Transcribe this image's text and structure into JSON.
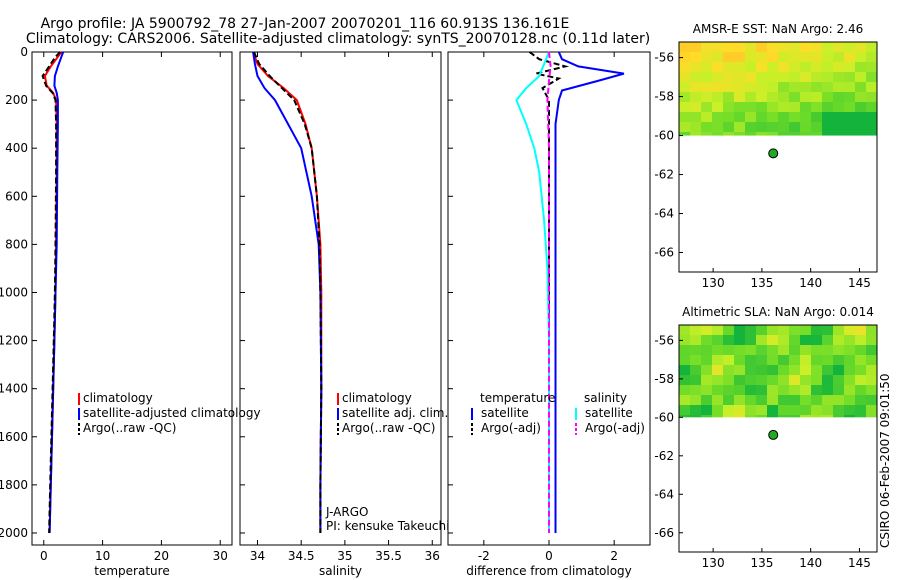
{
  "header": {
    "title_line1": "Argo profile: JA 5900792_78 27-Jan-2007 20070201_116 60.913S 136.161E",
    "title_line2": "Climatology: CARS2006. Satellite-adjusted climatology: synTS_20070128.nc (0.11d later)"
  },
  "colors": {
    "climatology": "#ff0000",
    "satellite": "#0000ff",
    "argo": "#000000",
    "salinity_satellite": "#00ffff",
    "salinity_argo": "#ff00ff",
    "float_marker": "#22aa22"
  },
  "chart_data": [
    {
      "type": "line",
      "title": "",
      "xlabel": "temperature",
      "ylabel": "",
      "xlim": [
        -2,
        32
      ],
      "ylim": [
        2050,
        0
      ],
      "xticks": [
        "0",
        "10",
        "20",
        "30"
      ],
      "xtick_values": [
        0,
        10,
        20,
        30
      ],
      "yticks": [
        "0",
        "200",
        "400",
        "600",
        "800",
        "1000",
        "1200",
        "1400",
        "1600",
        "1800",
        "2000"
      ],
      "ytick_values": [
        0,
        200,
        400,
        600,
        800,
        1000,
        1200,
        1400,
        1600,
        1800,
        2000
      ],
      "legend": [
        "climatology",
        "satellite-adjusted climatology",
        "Argo(..raw -QC)"
      ],
      "series": [
        {
          "name": "climatology",
          "color": "climatology",
          "x": [
            3.0,
            2.4,
            1.2,
            0.2,
            0.5,
            1.6,
            2.1,
            2.2,
            2.2,
            2.1,
            2.0,
            1.8,
            1.6,
            1.4,
            1.2,
            1.0
          ],
          "y": [
            0,
            20,
            60,
            100,
            140,
            170,
            200,
            300,
            500,
            800,
            1000,
            1200,
            1400,
            1600,
            1800,
            2000
          ]
        },
        {
          "name": "satellite-adjusted climatology",
          "color": "satellite",
          "x": [
            3.3,
            3.0,
            2.4,
            1.9,
            1.8,
            2.2,
            2.4,
            2.4,
            2.3,
            2.2,
            2.0,
            1.8,
            1.6,
            1.4,
            1.2,
            1.0
          ],
          "y": [
            0,
            20,
            60,
            100,
            140,
            170,
            200,
            300,
            500,
            800,
            1000,
            1200,
            1400,
            1600,
            1800,
            2000
          ]
        },
        {
          "name": "Argo(..raw -QC)",
          "color": "argo",
          "dash": true,
          "x": [
            2.8,
            2.0,
            0.9,
            -0.2,
            0.4,
            1.5,
            2.0,
            2.1,
            2.1,
            2.0,
            1.9,
            1.7,
            1.5,
            1.3,
            1.1,
            0.9
          ],
          "y": [
            0,
            20,
            60,
            100,
            140,
            170,
            200,
            300,
            500,
            800,
            1000,
            1200,
            1400,
            1600,
            1800,
            2000
          ]
        }
      ]
    },
    {
      "type": "line",
      "title": "",
      "xlabel": "salinity",
      "ylabel": "",
      "xlim": [
        33.8,
        36.1
      ],
      "ylim": [
        2050,
        0
      ],
      "xticks": [
        "34",
        "34.5",
        "35",
        "35.5",
        "36"
      ],
      "xtick_values": [
        34,
        34.5,
        35,
        35.5,
        36
      ],
      "legend": [
        "climatology",
        "satellite adj. clim.",
        "Argo(..raw -QC)"
      ],
      "annotations": [
        "J-ARGO",
        "PI: kensuke Takeuchi"
      ],
      "series": [
        {
          "name": "climatology",
          "color": "climatology",
          "x": [
            33.95,
            34.0,
            34.12,
            34.3,
            34.45,
            34.55,
            34.62,
            34.68,
            34.72,
            34.73,
            34.73,
            34.73,
            34.72,
            34.72
          ],
          "y": [
            0,
            50,
            100,
            150,
            200,
            300,
            400,
            600,
            800,
            1000,
            1200,
            1400,
            1800,
            2000
          ]
        },
        {
          "name": "satellite adj. clim.",
          "color": "satellite",
          "x": [
            33.95,
            33.97,
            34.0,
            34.08,
            34.2,
            34.35,
            34.5,
            34.62,
            34.7,
            34.72,
            34.73,
            34.72,
            34.72
          ],
          "y": [
            0,
            50,
            100,
            150,
            200,
            300,
            400,
            600,
            800,
            1000,
            1400,
            1800,
            2000
          ]
        },
        {
          "name": "Argo(..raw -QC)",
          "color": "argo",
          "dash": true,
          "x": [
            33.96,
            34.02,
            34.14,
            34.28,
            34.42,
            34.54,
            34.62,
            34.68,
            34.71,
            34.72,
            34.73,
            34.72,
            34.72
          ],
          "y": [
            0,
            50,
            100,
            150,
            200,
            300,
            400,
            600,
            800,
            1000,
            1400,
            1800,
            2000
          ]
        }
      ]
    },
    {
      "type": "line",
      "title": "",
      "xlabel": "difference from climatology",
      "ylabel": "",
      "xlim": [
        -3.1,
        3.1
      ],
      "ylim": [
        2050,
        0
      ],
      "xticks": [
        "-2",
        "0",
        "2"
      ],
      "xtick_values": [
        -2,
        0,
        2
      ],
      "legend_groups": [
        {
          "heading": "temperature",
          "items": [
            "satellite",
            "Argo(-adj)"
          ]
        },
        {
          "heading": "salinity",
          "items": [
            "satellite",
            "Argo(-adj)"
          ]
        }
      ],
      "series": [
        {
          "name": "temperature satellite",
          "color": "satellite",
          "x": [
            0.3,
            0.4,
            0.9,
            2.3,
            1.5,
            0.4,
            0.3,
            0.2,
            0.2,
            0.2,
            0.2,
            0.2,
            0.2
          ],
          "y": [
            0,
            30,
            60,
            90,
            120,
            160,
            200,
            300,
            600,
            1000,
            1400,
            1800,
            2000
          ]
        },
        {
          "name": "temperature Argo(-adj)",
          "color": "argo",
          "dash": true,
          "x": [
            -0.6,
            -0.3,
            0.5,
            -0.4,
            0.3,
            -0.2,
            0.0,
            0.0,
            0.0,
            0.0,
            0.0,
            0.0
          ],
          "y": [
            0,
            30,
            60,
            90,
            110,
            150,
            200,
            400,
            800,
            1200,
            1600,
            2000
          ]
        },
        {
          "name": "salinity satellite",
          "color": "salinity_satellite",
          "x": [
            0.0,
            -0.3,
            -0.7,
            -1.0,
            -0.7,
            -0.45,
            -0.3,
            -0.15,
            -0.05,
            0.0,
            0.0,
            0.0
          ],
          "y": [
            0,
            100,
            150,
            200,
            300,
            400,
            500,
            700,
            900,
            1200,
            1600,
            2000
          ]
        },
        {
          "name": "salinity Argo(-adj)",
          "color": "salinity_argo",
          "dash": true,
          "x": [
            0.0,
            0.05,
            0.0,
            -0.05,
            0.0,
            0.0,
            0.0,
            0.0
          ],
          "y": [
            0,
            60,
            120,
            200,
            400,
            800,
            1400,
            2000
          ]
        }
      ]
    },
    {
      "type": "heatmap",
      "title": "AMSR-E SST: NaN Argo: 2.46",
      "xlabel": "",
      "ylabel": "",
      "xlim": [
        126.5,
        146.8
      ],
      "ylim": [
        -67,
        -55.2
      ],
      "xticks": [
        "130",
        "135",
        "140",
        "145"
      ],
      "xtick_values": [
        130,
        135,
        140,
        145
      ],
      "yticks": [
        "-56",
        "-58",
        "-60",
        "-62",
        "-64",
        "-66"
      ],
      "ytick_values": [
        -56,
        -58,
        -60,
        -62,
        -64,
        -66
      ],
      "data_lat_range": [
        -60,
        -55.2
      ],
      "float_position": {
        "lon": 136.161,
        "lat": -60.913
      }
    },
    {
      "type": "heatmap",
      "title": "Altimetric SLA: NaN Argo: 0.014",
      "xlabel": "",
      "ylabel": "",
      "xlim": [
        126.5,
        146.8
      ],
      "ylim": [
        -67,
        -55.2
      ],
      "xticks": [
        "130",
        "135",
        "140",
        "145"
      ],
      "xtick_values": [
        130,
        135,
        140,
        145
      ],
      "yticks": [
        "-56",
        "-58",
        "-60",
        "-62",
        "-64",
        "-66"
      ],
      "ytick_values": [
        -56,
        -58,
        -60,
        -62,
        -64,
        -66
      ],
      "data_lat_range": [
        -60,
        -55.2
      ],
      "float_position": {
        "lon": 136.161,
        "lat": -60.913
      }
    }
  ],
  "footer": {
    "stamp": "CSIRO 06-Feb-2007 09:01:50"
  }
}
